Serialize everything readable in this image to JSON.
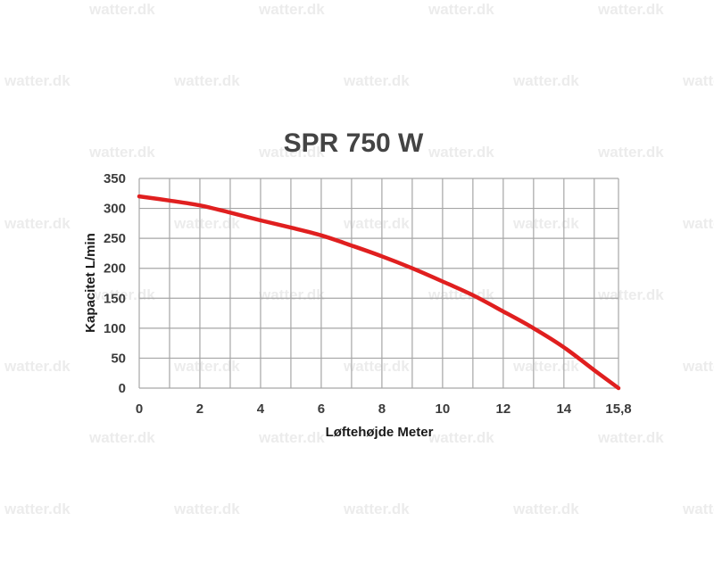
{
  "watermark": "watter.dk",
  "colors": {
    "curve": "#e01f1f",
    "grid": "#a6a6a6",
    "text": "#3b3b3b"
  },
  "chart_data": {
    "type": "line",
    "title": "SPR 750 W",
    "xlabel": "Løftehøjde Meter",
    "ylabel": "Kapacitet L/min",
    "xlim": [
      0,
      15.8
    ],
    "ylim": [
      0,
      350
    ],
    "x_ticks": [
      0,
      2,
      4,
      6,
      8,
      10,
      12,
      14,
      15.8
    ],
    "x_tick_labels": [
      "0",
      "2",
      "4",
      "6",
      "8",
      "10",
      "12",
      "14",
      "15,8"
    ],
    "y_ticks": [
      0,
      50,
      100,
      150,
      200,
      250,
      300,
      350
    ],
    "y_tick_labels": [
      "0",
      "50",
      "100",
      "150",
      "200",
      "250",
      "300",
      "350"
    ],
    "grid_x": [
      0,
      1,
      2,
      3,
      4,
      5,
      6,
      7,
      8,
      9,
      10,
      11,
      12,
      13,
      14,
      15,
      15.8
    ],
    "grid_y": [
      0,
      50,
      100,
      150,
      200,
      250,
      300,
      350
    ],
    "grid": true,
    "legend": "none",
    "series": [
      {
        "x": [
          0,
          1,
          2,
          3,
          4,
          5,
          6,
          7,
          8,
          9,
          10,
          11,
          12,
          13,
          14,
          15,
          15.8
        ],
        "y": [
          320,
          313,
          305,
          293,
          280,
          268,
          255,
          238,
          220,
          200,
          178,
          155,
          128,
          100,
          68,
          30,
          0
        ]
      }
    ]
  }
}
